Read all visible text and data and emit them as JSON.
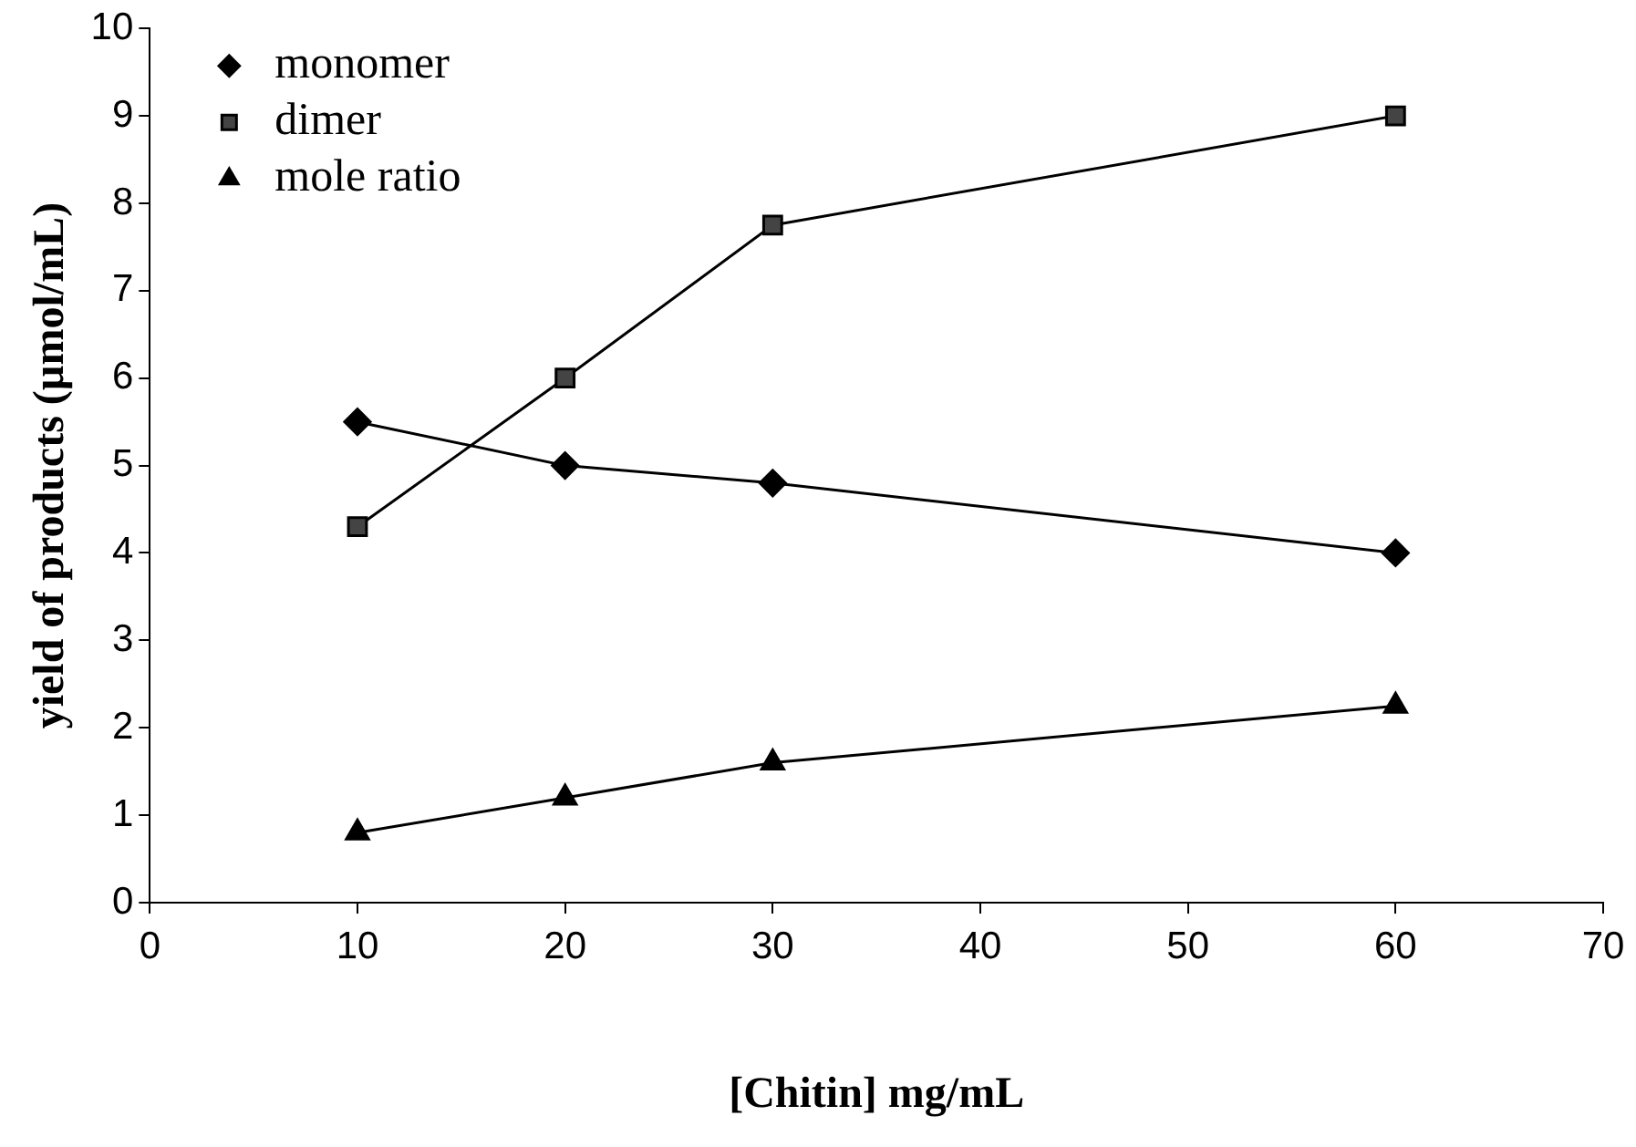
{
  "chart_data": {
    "type": "line",
    "xlabel": "[Chitin] mg/mL",
    "ylabel": "yield of products (µmol/mL)",
    "x": [
      10,
      20,
      30,
      60
    ],
    "series": [
      {
        "name": "monomer",
        "color": "#000000",
        "marker": "diamond",
        "values": [
          5.5,
          5.0,
          4.8,
          4.0
        ]
      },
      {
        "name": "dimer",
        "color": "#000000",
        "marker": "square",
        "values": [
          4.3,
          6.0,
          7.75,
          9.0
        ]
      },
      {
        "name": "mole ratio",
        "color": "#000000",
        "marker": "triangle",
        "values": [
          0.8,
          1.2,
          1.6,
          2.25
        ]
      }
    ],
    "xlim": [
      0,
      70
    ],
    "xticks": [
      0,
      10,
      20,
      30,
      40,
      50,
      60,
      70
    ],
    "ylim": [
      0,
      10
    ],
    "yticks": [
      0,
      1,
      2,
      3,
      4,
      5,
      6,
      7,
      8,
      9,
      10
    ],
    "grid": false,
    "legend": "top left",
    "line_style": "solid"
  }
}
